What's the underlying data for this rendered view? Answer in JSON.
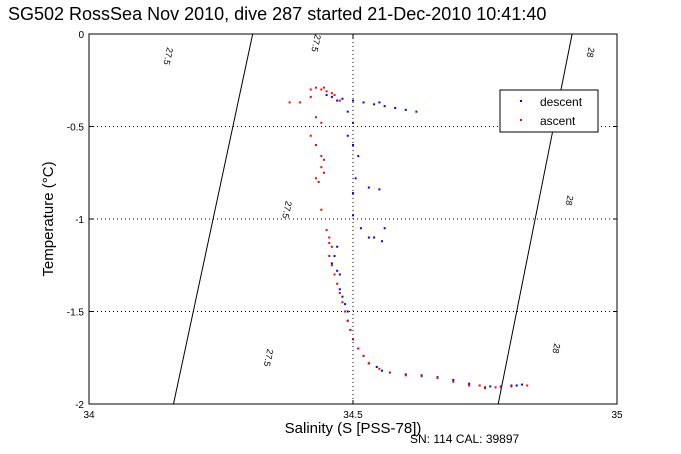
{
  "chart_data": {
    "type": "scatter",
    "title": "SG502 RossSea Nov 2010, dive 287 started 21-Dec-2010 10:41:40",
    "xlabel": "Salinity (S [PSS-78])",
    "ylabel": "Temperature (°C)",
    "xlim": [
      34,
      35
    ],
    "ylim": [
      -2,
      0
    ],
    "x_ticks": [
      "34",
      "34.5",
      "35"
    ],
    "y_ticks": [
      "0",
      "-0.5",
      "-1",
      "-1.5",
      "-2"
    ],
    "grid": true,
    "legend_position": "top-right",
    "isopycnals": [
      {
        "label": "27.5",
        "label_positions": [
          [
            34.15,
            -0.12
          ],
          [
            34.43,
            -0.05
          ]
        ],
        "points": [
          [
            34.31,
            0
          ],
          [
            34.16,
            -2
          ]
        ]
      },
      {
        "label": "27.5",
        "label_positions": [
          [
            34.375,
            -0.95
          ],
          [
            34.34,
            -1.75
          ]
        ],
        "points": [
          [
            34.31,
            0
          ],
          [
            34.16,
            -2
          ]
        ]
      },
      {
        "label": "28",
        "label_positions": [
          [
            34.95,
            -0.1
          ],
          [
            34.91,
            -0.9
          ]
        ],
        "points": [
          [
            34.915,
            0
          ],
          [
            34.775,
            -2
          ]
        ]
      },
      {
        "label": "28",
        "label_positions": [
          [
            34.885,
            -1.7
          ]
        ],
        "points": [
          [
            34.915,
            0
          ],
          [
            34.775,
            -2
          ]
        ]
      }
    ],
    "series": [
      {
        "name": "descent",
        "color": "#0000ff",
        "points": [
          [
            34.45,
            -0.33
          ],
          [
            34.46,
            -0.34
          ],
          [
            34.47,
            -0.36
          ],
          [
            34.48,
            -0.35
          ],
          [
            34.5,
            -0.36
          ],
          [
            34.52,
            -0.37
          ],
          [
            34.54,
            -0.38
          ],
          [
            34.56,
            -0.39
          ],
          [
            34.58,
            -0.4
          ],
          [
            34.6,
            -0.41
          ],
          [
            34.62,
            -0.42
          ],
          [
            34.55,
            -0.37
          ],
          [
            34.49,
            -0.42
          ],
          [
            34.5,
            -0.48
          ],
          [
            34.49,
            -0.55
          ],
          [
            34.5,
            -0.6
          ],
          [
            34.51,
            -0.66
          ],
          [
            34.505,
            -0.78
          ],
          [
            34.5,
            -0.86
          ],
          [
            34.53,
            -0.83
          ],
          [
            34.55,
            -0.84
          ],
          [
            34.5,
            -0.98
          ],
          [
            34.515,
            -1.05
          ],
          [
            34.53,
            -1.1
          ],
          [
            34.54,
            -1.1
          ],
          [
            34.56,
            -1.05
          ],
          [
            34.555,
            -1.12
          ],
          [
            34.47,
            -1.15
          ],
          [
            34.465,
            -1.2
          ],
          [
            34.46,
            -1.24
          ],
          [
            34.47,
            -1.28
          ],
          [
            34.475,
            -1.3
          ],
          [
            34.475,
            -1.38
          ],
          [
            34.48,
            -1.42
          ],
          [
            34.485,
            -1.46
          ],
          [
            34.49,
            -1.5
          ],
          [
            34.49,
            -1.55
          ],
          [
            34.495,
            -1.6
          ],
          [
            34.5,
            -1.65
          ],
          [
            34.51,
            -1.7
          ],
          [
            34.52,
            -1.74
          ],
          [
            34.53,
            -1.78
          ],
          [
            34.545,
            -1.8
          ],
          [
            34.555,
            -1.82
          ],
          [
            34.57,
            -1.83
          ],
          [
            34.6,
            -1.84
          ],
          [
            34.63,
            -1.845
          ],
          [
            34.66,
            -1.855
          ],
          [
            34.69,
            -1.87
          ],
          [
            34.72,
            -1.89
          ],
          [
            34.75,
            -1.91
          ],
          [
            34.78,
            -1.905
          ],
          [
            34.81,
            -1.9
          ],
          [
            34.82,
            -1.895
          ],
          [
            34.8,
            -1.9
          ],
          [
            34.76,
            -1.905
          ]
        ]
      },
      {
        "name": "ascent",
        "color": "#ff0000",
        "points": [
          [
            34.42,
            -0.3
          ],
          [
            34.43,
            -0.29
          ],
          [
            34.44,
            -0.3
          ],
          [
            34.445,
            -0.29
          ],
          [
            34.45,
            -0.31
          ],
          [
            34.46,
            -0.32
          ],
          [
            34.465,
            -0.33
          ],
          [
            34.475,
            -0.36
          ],
          [
            34.4,
            -0.37
          ],
          [
            34.38,
            -0.37
          ],
          [
            34.42,
            -0.34
          ],
          [
            34.43,
            -0.45
          ],
          [
            34.44,
            -0.48
          ],
          [
            34.42,
            -0.55
          ],
          [
            34.43,
            -0.6
          ],
          [
            34.44,
            -0.66
          ],
          [
            34.445,
            -0.68
          ],
          [
            34.44,
            -0.72
          ],
          [
            34.445,
            -0.75
          ],
          [
            34.43,
            -0.78
          ],
          [
            34.435,
            -0.8
          ],
          [
            34.44,
            -0.95
          ],
          [
            34.45,
            -1.06
          ],
          [
            34.455,
            -1.1
          ],
          [
            34.455,
            -1.13
          ],
          [
            34.46,
            -1.15
          ],
          [
            34.455,
            -1.2
          ],
          [
            34.46,
            -1.25
          ],
          [
            34.465,
            -1.3
          ],
          [
            34.47,
            -1.35
          ],
          [
            34.475,
            -1.4
          ],
          [
            34.48,
            -1.45
          ],
          [
            34.485,
            -1.5
          ],
          [
            34.49,
            -1.55
          ],
          [
            34.495,
            -1.6
          ],
          [
            34.5,
            -1.65
          ],
          [
            34.51,
            -1.7
          ],
          [
            34.52,
            -1.74
          ],
          [
            34.53,
            -1.78
          ],
          [
            34.55,
            -1.81
          ],
          [
            34.57,
            -1.83
          ],
          [
            34.6,
            -1.845
          ],
          [
            34.63,
            -1.85
          ],
          [
            34.66,
            -1.86
          ],
          [
            34.69,
            -1.88
          ],
          [
            34.72,
            -1.9
          ],
          [
            34.75,
            -1.915
          ],
          [
            34.78,
            -1.91
          ],
          [
            34.8,
            -1.905
          ],
          [
            34.83,
            -1.9
          ],
          [
            34.77,
            -1.91
          ],
          [
            34.74,
            -1.9
          ]
        ]
      }
    ]
  },
  "footer": {
    "serial": "SN: 114  CAL: 39897"
  }
}
